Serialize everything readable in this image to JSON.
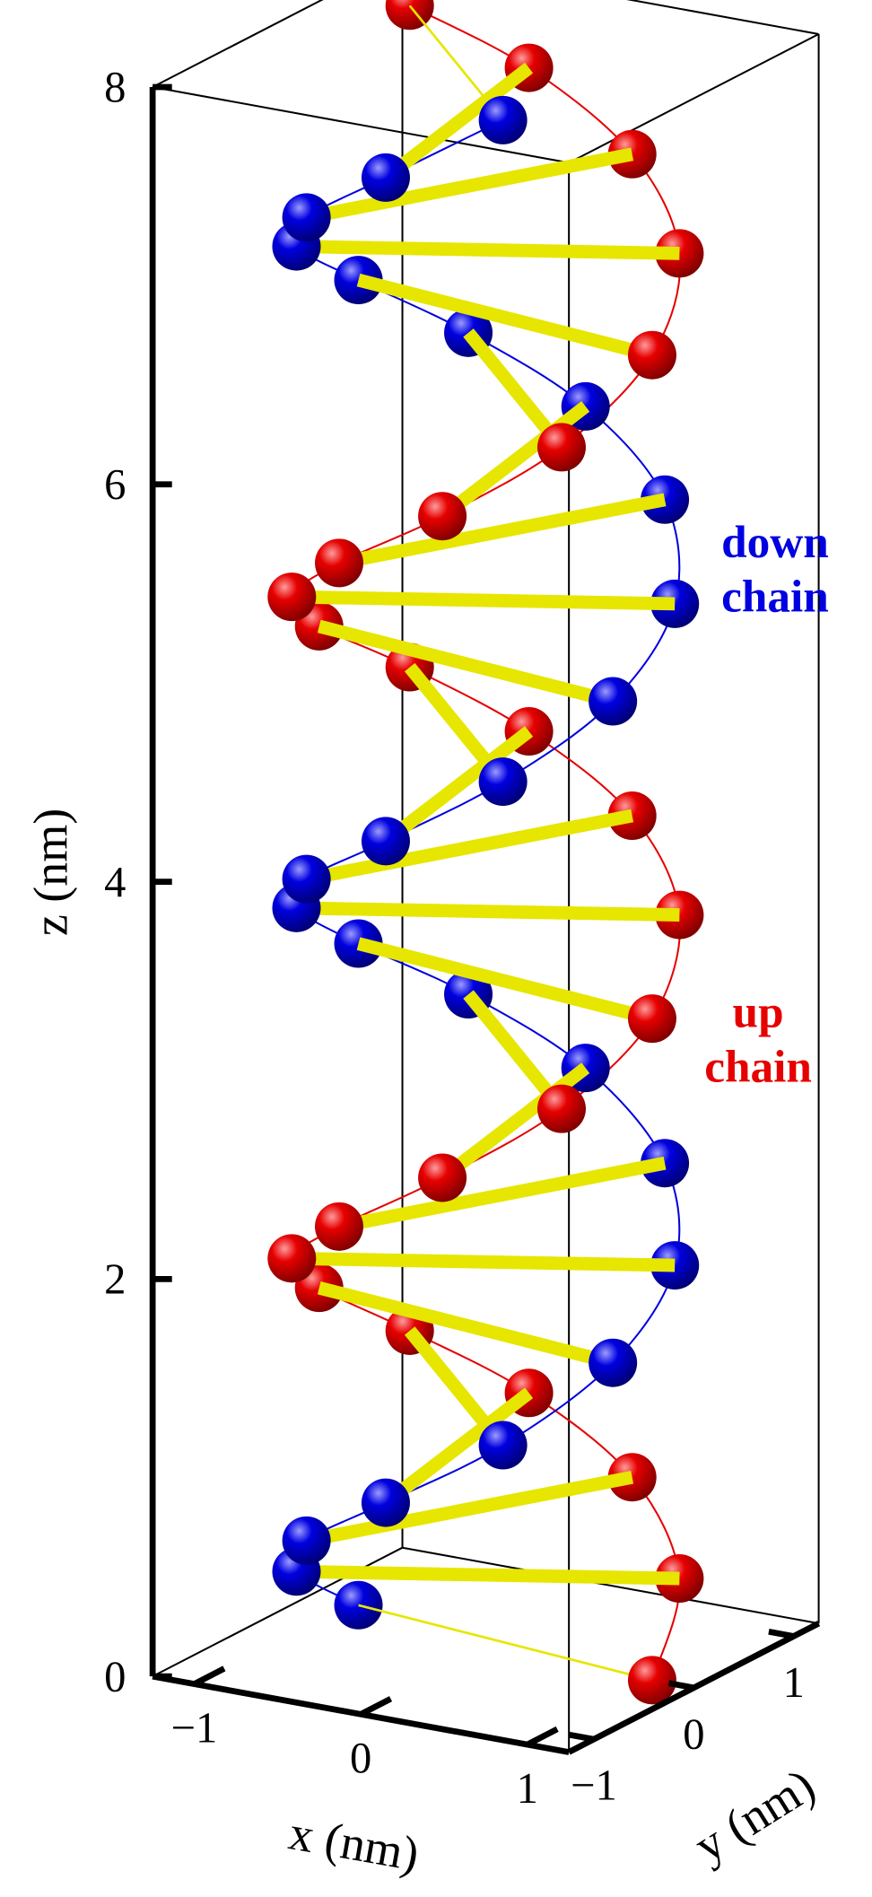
{
  "chart_data": {
    "type": "helix3d",
    "xlabel": "x (nm)",
    "ylabel": "y (nm)",
    "zlabel": "z (nm)",
    "xlim": [
      -1.25,
      1.25
    ],
    "ylim": [
      -1.25,
      1.25
    ],
    "zlim": [
      0,
      8
    ],
    "xticks": [
      {
        "value": -1,
        "label": "−1"
      },
      0,
      1
    ],
    "yticks": [
      {
        "value": -1,
        "label": "−1"
      },
      0,
      1
    ],
    "zticks": [
      0,
      2,
      4,
      6,
      8
    ],
    "bond_color": "#e6e600",
    "series": [
      {
        "name": "up chain",
        "color": "#e60000",
        "x": [
          1,
          0.81,
          0.31,
          -0.31,
          -0.81,
          -1,
          -0.81,
          -0.31,
          0.31,
          0.81,
          1,
          0.81,
          0.31,
          -0.31,
          -0.81,
          -1,
          -0.81,
          -0.31,
          0.31,
          0.81,
          1,
          0.81,
          0.31,
          -0.31,
          -0.81
        ],
        "y": [
          0,
          0.59,
          0.95,
          0.95,
          0.59,
          0,
          -0.59,
          -0.95,
          -0.95,
          -0.59,
          0,
          0.59,
          0.95,
          0.95,
          0.59,
          0,
          -0.59,
          -0.95,
          -0.95,
          -0.59,
          0,
          0.59,
          0.95,
          0.95,
          0.59
        ],
        "z": [
          0,
          0.33,
          0.67,
          1,
          1.33,
          1.67,
          2,
          2.33,
          2.67,
          3,
          3.33,
          3.67,
          4,
          4.33,
          4.67,
          5,
          5.33,
          5.67,
          6,
          6.33,
          6.67,
          7,
          7.33,
          7.67,
          8
        ]
      },
      {
        "name": "down chain",
        "color": "#0000e0",
        "x": [
          -0.95,
          -0.95,
          -0.59,
          0,
          0.59,
          0.95,
          0.95,
          0.59,
          0,
          -0.59,
          -0.95,
          -0.95,
          -0.59,
          0,
          0.59,
          0.95,
          0.95,
          0.59,
          0,
          -0.59,
          -0.95,
          -0.95,
          -0.59,
          0,
          0.59
        ],
        "y": [
          0.31,
          -0.31,
          -0.81,
          -1,
          -0.81,
          -0.31,
          0.31,
          0.81,
          1,
          0.81,
          0.31,
          -0.31,
          -0.81,
          -1,
          -0.81,
          -0.31,
          0.31,
          0.81,
          1,
          0.81,
          0.31,
          -0.31,
          -0.81,
          -1,
          -0.81
        ],
        "z": [
          0,
          0.33,
          0.67,
          1,
          1.33,
          1.67,
          2,
          2.33,
          2.67,
          3,
          3.33,
          3.67,
          4,
          4.33,
          4.67,
          5,
          5.33,
          5.67,
          6,
          6.33,
          6.67,
          7,
          7.33,
          7.67,
          8
        ]
      }
    ],
    "annotations": [
      {
        "lines": [
          "down",
          "chain"
        ],
        "color": "#0000e0"
      },
      {
        "lines": [
          "up",
          "chain"
        ],
        "color": "#e60000"
      }
    ]
  }
}
